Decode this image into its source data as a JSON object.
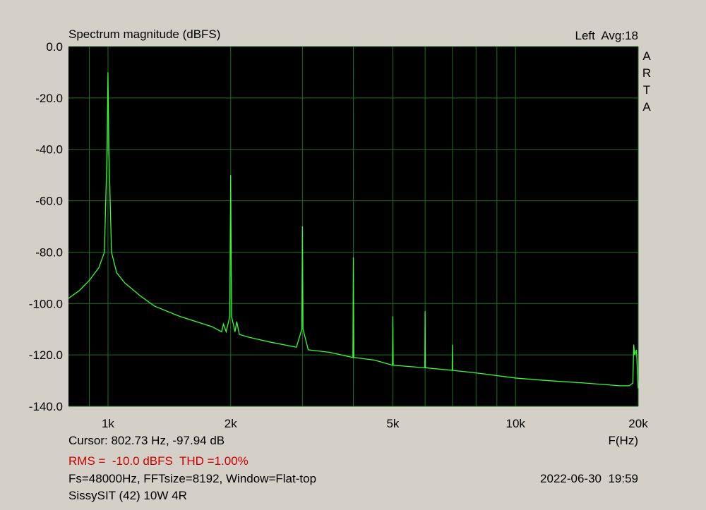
{
  "chart_data": {
    "type": "line",
    "title": "Spectrum magnitude (dBFS)",
    "channel_info": "Left  Avg:18",
    "watermark": "ARTA",
    "xlabel": "F(Hz)",
    "cursor": "Cursor: 802.73 Hz, -97.94 dB",
    "measurement": "RMS =  -10.0 dBFS  THD =1.00%",
    "measurement_color": "#cc0000",
    "settings": "Fs=48000Hz, FFTsize=8192, Window=Flat-top",
    "timestamp": "2022-06-30  19:59",
    "device": "SissySIT (42) 10W 4R",
    "xscale": "log",
    "grid": true,
    "grid_color": "#1f6e1f",
    "background": "#000000",
    "xlim": [
      800,
      20000
    ],
    "ylim": [
      -140,
      0
    ],
    "xticks": [
      {
        "value": 1000,
        "label": "1k"
      },
      {
        "value": 2000,
        "label": "2k"
      },
      {
        "value": 5000,
        "label": "5k"
      },
      {
        "value": 10000,
        "label": "10k"
      },
      {
        "value": 20000,
        "label": "20k"
      }
    ],
    "xminor_grid": [
      900,
      3000,
      4000,
      6000,
      7000,
      8000,
      9000
    ],
    "yticks": [
      {
        "value": 0,
        "label": "0.0"
      },
      {
        "value": -20,
        "label": "-20.0"
      },
      {
        "value": -40,
        "label": "-40.0"
      },
      {
        "value": -60,
        "label": "-60.0"
      },
      {
        "value": -80,
        "label": "-80.0"
      },
      {
        "value": -100,
        "label": "-100.0"
      },
      {
        "value": -120,
        "label": "-120.0"
      },
      {
        "value": -140,
        "label": "-140.0"
      }
    ],
    "x": [
      800,
      850,
      900,
      950,
      980,
      995,
      1000,
      1005,
      1020,
      1050,
      1100,
      1200,
      1300,
      1500,
      1800,
      1900,
      1920,
      1950,
      1990,
      2000,
      2010,
      2050,
      2070,
      2100,
      2200,
      2500,
      2900,
      2990,
      3000,
      3010,
      3100,
      3500,
      3990,
      4000,
      4010,
      4500,
      4990,
      5000,
      5010,
      5990,
      6000,
      6010,
      6990,
      7000,
      7010,
      8000,
      10000,
      12000,
      15000,
      18000,
      19000,
      19400,
      19500,
      19600,
      19800,
      20000
    ],
    "series": [
      {
        "color": "#33ff33",
        "values": [
          -98,
          -95,
          -91,
          -86,
          -80,
          -40,
          -10,
          -40,
          -80,
          -88,
          -92,
          -97,
          -101,
          -105,
          -109,
          -111,
          -108,
          -111,
          -105,
          -50,
          -105,
          -111,
          -107,
          -112,
          -113,
          -115,
          -117,
          -110,
          -70,
          -110,
          -118,
          -119,
          -121,
          -82,
          -121,
          -122,
          -124,
          -105,
          -124,
          -125,
          -103,
          -125,
          -126,
          -116,
          -126,
          -127,
          -129,
          -130,
          -131,
          -132,
          -132,
          -131,
          -116,
          -120,
          -118,
          -133
        ]
      }
    ]
  }
}
